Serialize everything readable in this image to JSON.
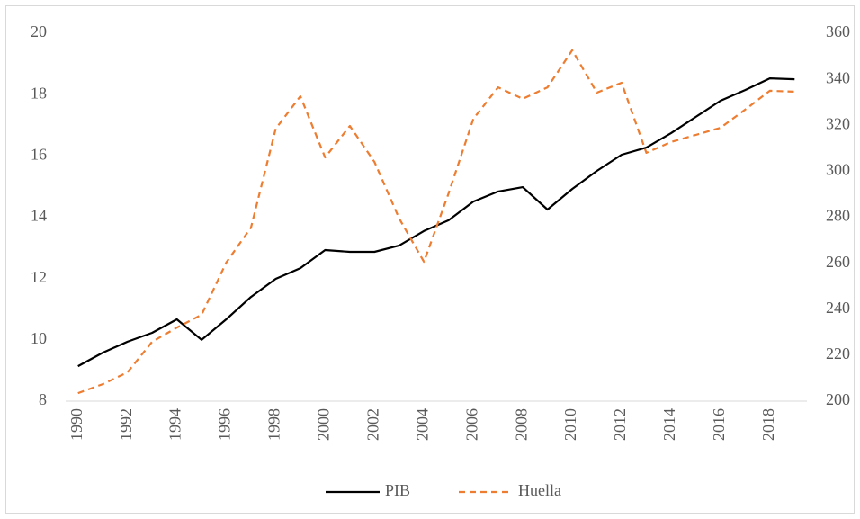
{
  "chart_data": {
    "type": "line",
    "categories": [
      "1990",
      null,
      "1992",
      null,
      "1994",
      null,
      "1996",
      null,
      "1998",
      null,
      "2000",
      null,
      "2002",
      null,
      "2004",
      null,
      "2006",
      null,
      "2008",
      null,
      "2010",
      null,
      "2012",
      null,
      "2014",
      null,
      "2016",
      null,
      "2018",
      null
    ],
    "series": [
      {
        "name": "PIB",
        "color": "#000000",
        "dash": false,
        "axis": "y",
        "values": [
          9.14,
          9.58,
          9.94,
          10.23,
          10.67,
          10.0,
          10.67,
          11.4,
          11.99,
          12.34,
          12.93,
          12.87,
          12.87,
          13.08,
          13.55,
          13.9,
          14.51,
          14.84,
          14.98,
          14.25,
          14.92,
          15.51,
          16.04,
          16.27,
          16.74,
          17.27,
          17.8,
          18.15,
          18.53,
          18.5
        ]
      },
      {
        "name": "Huella",
        "color": "#ED7D31",
        "dash": true,
        "axis": "y2",
        "values": [
          203.5,
          207.4,
          212.5,
          225.8,
          232,
          237.6,
          260.3,
          275.5,
          318.5,
          332.6,
          306,
          319.7,
          304,
          279.4,
          260.6,
          290.4,
          322.8,
          336.5,
          331.5,
          336.5,
          352.6,
          334.2,
          338.5,
          308,
          312.7,
          315.8,
          318.9,
          326.8,
          335,
          334.6
        ]
      }
    ],
    "ylim": [
      8,
      20
    ],
    "yticks": [
      8,
      10,
      12,
      14,
      16,
      18,
      20
    ],
    "y2lim": [
      200,
      360
    ],
    "y2ticks": [
      200,
      220,
      240,
      260,
      280,
      300,
      320,
      340,
      360
    ],
    "grid": false,
    "legend": "bottom"
  }
}
